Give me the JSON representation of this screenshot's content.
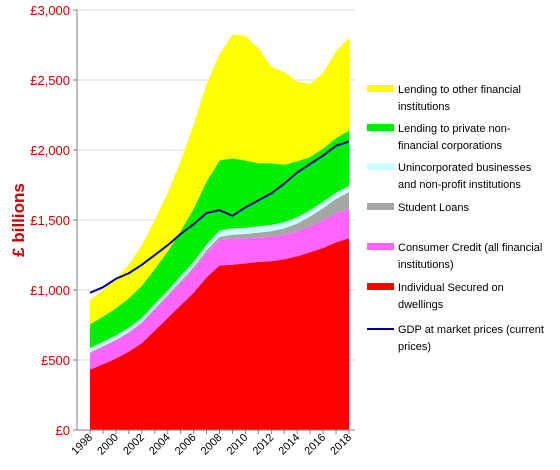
{
  "chart_data": {
    "type": "area",
    "ylabel": "£ billions",
    "xlabel": "",
    "ylim": [
      0,
      3000
    ],
    "yticks": [
      0,
      500,
      1000,
      1500,
      2000,
      2500,
      3000
    ],
    "ytick_labels": [
      "£0",
      "£500",
      "£1,000",
      "£1,500",
      "£2,000",
      "£2,500",
      "£3,000"
    ],
    "xlim": [
      1998,
      2018
    ],
    "xticks": [
      1998,
      2000,
      2002,
      2004,
      2006,
      2008,
      2010,
      2012,
      2014,
      2016,
      2018
    ],
    "xtick_labels": [
      "1998",
      "2000",
      "2002",
      "2004",
      "2006",
      "2008",
      "2010",
      "2012",
      "2014",
      "2016",
      "2018"
    ],
    "x": [
      1998,
      1999,
      2000,
      2001,
      2002,
      2003,
      2004,
      2005,
      2006,
      2007,
      2008,
      2009,
      2010,
      2011,
      2012,
      2013,
      2014,
      2015,
      2016,
      2017,
      2018
    ],
    "grid": "horizontal",
    "legend_position": "right",
    "stacked": true,
    "series": [
      {
        "name": "Individual Secured on dwellings",
        "color": "#ff0000",
        "values": [
          430,
          470,
          510,
          560,
          620,
          710,
          800,
          890,
          980,
          1090,
          1175,
          1180,
          1190,
          1200,
          1205,
          1220,
          1240,
          1270,
          1300,
          1340,
          1370
        ]
      },
      {
        "name": "Consumer Credit (all financial institutions)",
        "color": "#ff66ff",
        "values": [
          120,
          125,
          130,
          135,
          145,
          150,
          155,
          160,
          170,
          175,
          185,
          190,
          180,
          175,
          175,
          175,
          180,
          185,
          200,
          210,
          210
        ]
      },
      {
        "name": "Student  Loans",
        "color": "#a6a6a6",
        "values": [
          5,
          5,
          5,
          5,
          5,
          10,
          10,
          15,
          15,
          20,
          20,
          25,
          30,
          35,
          40,
          45,
          55,
          70,
          85,
          100,
          120
        ]
      },
      {
        "name": "Unincorporated businesses and non-profit institutions",
        "color": "#ccffff",
        "values": [
          30,
          30,
          30,
          30,
          30,
          30,
          30,
          35,
          35,
          40,
          45,
          45,
          45,
          45,
          45,
          45,
          45,
          45,
          45,
          45,
          45
        ]
      },
      {
        "name": "Lending to private non-financial corporations",
        "color": "#00ee00",
        "values": [
          170,
          180,
          195,
          210,
          230,
          250,
          280,
          320,
          380,
          450,
          500,
          500,
          480,
          450,
          440,
          410,
          400,
          380,
          380,
          390,
          395
        ]
      },
      {
        "name": "Lending to other financial institutions",
        "color": "#ffff00",
        "values": [
          175,
          190,
          210,
          240,
          290,
          350,
          420,
          500,
          600,
          700,
          760,
          885,
          890,
          820,
          690,
          660,
          570,
          520,
          540,
          620,
          660
        ]
      }
    ],
    "line_series": {
      "name": "GDP at market prices (current prices)",
      "color": "#000099",
      "values": [
        980,
        1020,
        1080,
        1120,
        1180,
        1250,
        1320,
        1400,
        1470,
        1550,
        1570,
        1530,
        1590,
        1640,
        1690,
        1760,
        1840,
        1900,
        1960,
        2030,
        2060
      ]
    }
  }
}
